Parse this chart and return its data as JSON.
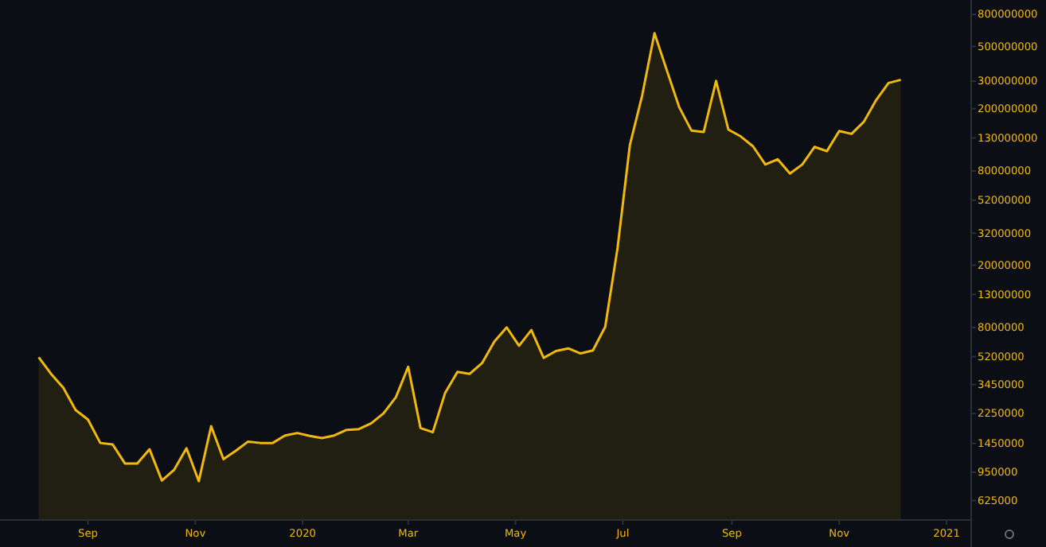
{
  "chart_data": {
    "type": "area",
    "log": true,
    "grid": false,
    "x": [
      "2019-08-04",
      "2019-08-11",
      "2019-08-18",
      "2019-08-25",
      "2019-09-01",
      "2019-09-08",
      "2019-09-15",
      "2019-09-22",
      "2019-09-29",
      "2019-10-06",
      "2019-10-13",
      "2019-10-20",
      "2019-10-27",
      "2019-11-03",
      "2019-11-10",
      "2019-11-17",
      "2019-11-24",
      "2019-12-01",
      "2019-12-08",
      "2019-12-15",
      "2019-12-22",
      "2019-12-29",
      "2020-01-05",
      "2020-01-12",
      "2020-01-19",
      "2020-01-26",
      "2020-02-02",
      "2020-02-09",
      "2020-02-16",
      "2020-02-23",
      "2020-03-01",
      "2020-03-08",
      "2020-03-15",
      "2020-03-22",
      "2020-03-29",
      "2020-04-05",
      "2020-04-12",
      "2020-04-19",
      "2020-04-26",
      "2020-05-03",
      "2020-05-10",
      "2020-05-17",
      "2020-05-24",
      "2020-05-31",
      "2020-06-07",
      "2020-06-14",
      "2020-06-21",
      "2020-06-28",
      "2020-07-05",
      "2020-07-12",
      "2020-07-19",
      "2020-07-26",
      "2020-08-02",
      "2020-08-09",
      "2020-08-16",
      "2020-08-23",
      "2020-08-30",
      "2020-09-06",
      "2020-09-13",
      "2020-09-20",
      "2020-09-27",
      "2020-10-04",
      "2020-10-11",
      "2020-10-18",
      "2020-10-25",
      "2020-11-01",
      "2020-11-08",
      "2020-11-15",
      "2020-11-22",
      "2020-11-29",
      "2020-12-06"
    ],
    "series": [
      {
        "color": "#f0b90b",
        "values": [
          5150000,
          4040000,
          3290000,
          2370000,
          2060000,
          1460000,
          1430000,
          1080000,
          1080000,
          1330000,
          840000,
          984000,
          1350000,
          832000,
          1870000,
          1150000,
          1300000,
          1490000,
          1460000,
          1460000,
          1630000,
          1690000,
          1620000,
          1570000,
          1630000,
          1770000,
          1790000,
          1950000,
          2260000,
          2860000,
          4480000,
          1820000,
          1710000,
          3050000,
          4150000,
          4040000,
          4730000,
          6500000,
          8000000,
          6100000,
          7690000,
          5110000,
          5650000,
          5870000,
          5450000,
          5700000,
          8070000,
          25700000,
          117000000,
          243000000,
          607000000,
          352000000,
          205000000,
          145000000,
          142000000,
          301000000,
          147000000,
          133000000,
          115000000,
          88000000,
          95000000,
          77000000,
          88000000,
          114000000,
          107000000,
          144000000,
          138000000,
          165000000,
          227000000,
          292000000,
          306000000
        ]
      }
    ],
    "xlim": [
      "2019-07-13",
      "2021-01-15"
    ],
    "xticks": [
      {
        "value": "2019-09-01",
        "label": "Sep"
      },
      {
        "value": "2019-11-01",
        "label": "Nov"
      },
      {
        "value": "2020-01-01",
        "label": "2020"
      },
      {
        "value": "2020-03-01",
        "label": "Mar"
      },
      {
        "value": "2020-05-01",
        "label": "May"
      },
      {
        "value": "2020-07-01",
        "label": "Jul"
      },
      {
        "value": "2020-09-01",
        "label": "Sep"
      },
      {
        "value": "2020-11-01",
        "label": "Nov"
      },
      {
        "value": "2021-01-01",
        "label": "2021"
      }
    ],
    "ylim": [
      470000,
      990000000
    ],
    "yticks": [
      625000,
      950000,
      1450000,
      2250000,
      3450000,
      5200000,
      8000000,
      13000000,
      20000000,
      32000000,
      52000000,
      80000000,
      130000000,
      200000000,
      300000000,
      500000000,
      800000000
    ]
  }
}
